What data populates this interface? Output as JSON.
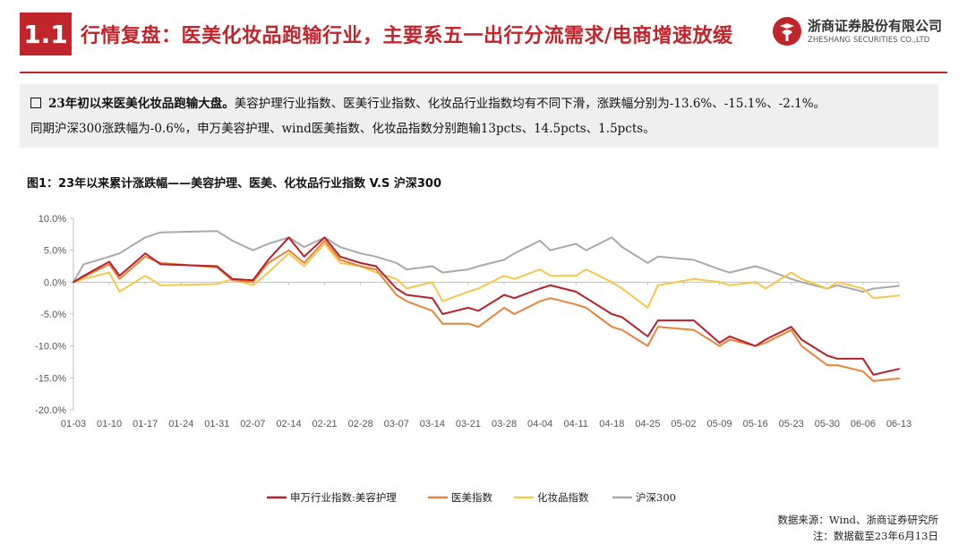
{
  "header": {
    "section_number": "1.1",
    "title": "行情复盘：医美化妆品跑输行业，主要系五一出行分流需求/电商增速放缓",
    "logo_cn": "浙商证券股份有限公司",
    "logo_en": "ZHESHANG SECURITIES CO.,LTD"
  },
  "summary": {
    "lead": "23年初以来医美化妆品跑输大盘。",
    "line1_rest": "美容护理行业指数、医美行业指数、化妆品行业指数均有不同下滑，涨跌幅分别为-13.6%、-15.1%、-2.1%。",
    "line2": "同期沪深300涨跌幅为-0.6%，申万美容护理、wind医美指数、化妆品指数分别跑输13pcts、14.5pcts、1.5pcts。"
  },
  "figure": {
    "title": "图1：23年以来累计涨跌幅——美容护理、医美、化妆品行业指数 V.S 沪深300"
  },
  "source": {
    "line1": "数据来源：Wind、浙商证券研究所",
    "line2": "注：数据截至23年6月13日"
  },
  "chart_data": {
    "type": "line",
    "title": "",
    "xlabel": "",
    "ylabel": "",
    "ylim": [
      -20,
      10
    ],
    "yticks": [
      10,
      5,
      0,
      -5,
      -10,
      -15,
      -20
    ],
    "ytick_labels": [
      "10.0%",
      "5.0%",
      "0.0%",
      "-5.0%",
      "-10.0%",
      "-15.0%",
      "-20.0%"
    ],
    "xtick_labels": [
      "01-03",
      "01-10",
      "01-17",
      "01-24",
      "01-31",
      "02-07",
      "02-14",
      "02-21",
      "02-28",
      "03-07",
      "03-14",
      "03-21",
      "03-28",
      "04-04",
      "04-11",
      "04-18",
      "04-25",
      "05-02",
      "05-09",
      "05-16",
      "05-23",
      "05-30",
      "06-06",
      "06-13"
    ],
    "x": [
      "01-03",
      "01-05",
      "01-10",
      "01-12",
      "01-17",
      "01-20",
      "01-31",
      "02-03",
      "02-07",
      "02-10",
      "02-14",
      "02-17",
      "02-21",
      "02-24",
      "02-28",
      "03-03",
      "03-07",
      "03-09",
      "03-14",
      "03-16",
      "03-21",
      "03-23",
      "03-28",
      "03-30",
      "04-04",
      "04-06",
      "04-11",
      "04-13",
      "04-18",
      "04-20",
      "04-25",
      "04-27",
      "05-04",
      "05-09",
      "05-11",
      "05-16",
      "05-18",
      "05-23",
      "05-25",
      "05-30",
      "06-01",
      "06-06",
      "06-08",
      "06-13"
    ],
    "grid": false,
    "legend_position": "bottom",
    "series": [
      {
        "name": "申万行业指数:美容护理",
        "color": "#b5202a",
        "values": [
          0,
          1.0,
          3.2,
          1.0,
          4.5,
          2.8,
          2.5,
          0.5,
          0.3,
          3.5,
          7.0,
          4.0,
          7.0,
          4.0,
          3.0,
          2.5,
          -1.0,
          -2.0,
          -2.5,
          -5.0,
          -4.0,
          -4.5,
          -2.0,
          -2.5,
          -1.0,
          -0.5,
          -1.5,
          -2.5,
          -5.0,
          -5.5,
          -8.5,
          -6.0,
          -6.0,
          -9.5,
          -8.5,
          -10.0,
          -9.0,
          -7.0,
          -9.0,
          -11.5,
          -12.0,
          -12.0,
          -14.5,
          -13.6
        ]
      },
      {
        "name": "医美指数",
        "color": "#e8843a",
        "values": [
          0,
          0.8,
          2.8,
          0.5,
          4.0,
          3.0,
          2.3,
          0.3,
          0.0,
          3.0,
          5.0,
          3.0,
          6.5,
          3.5,
          2.5,
          2.0,
          -2.0,
          -3.0,
          -4.5,
          -6.5,
          -6.5,
          -7.0,
          -4.0,
          -5.0,
          -3.0,
          -2.5,
          -3.5,
          -4.0,
          -7.0,
          -7.5,
          -10.0,
          -7.0,
          -7.5,
          -10.0,
          -9.0,
          -10.0,
          -9.5,
          -7.5,
          -10.0,
          -13.0,
          -13.0,
          -14.0,
          -15.5,
          -15.1
        ]
      },
      {
        "name": "化妆品指数",
        "color": "#f4c84c",
        "values": [
          0,
          0.5,
          1.5,
          -1.5,
          1.0,
          -0.5,
          -0.3,
          0.5,
          -0.5,
          1.5,
          4.5,
          2.5,
          6.0,
          3.0,
          2.5,
          1.5,
          0.5,
          -1.0,
          0.0,
          -3.0,
          -1.5,
          -1.0,
          1.0,
          0.5,
          2.0,
          1.0,
          1.0,
          2.0,
          0.0,
          -1.0,
          -4.0,
          -0.5,
          0.5,
          0.0,
          -0.5,
          0.0,
          -1.0,
          1.5,
          0.5,
          -1.0,
          0.0,
          -1.0,
          -2.5,
          -2.1
        ]
      },
      {
        "name": "沪深300",
        "color": "#a9a9a9",
        "values": [
          0,
          2.8,
          4.0,
          4.5,
          7.0,
          7.8,
          8.0,
          6.5,
          5.0,
          6.0,
          7.0,
          5.5,
          7.0,
          5.5,
          4.5,
          4.0,
          3.0,
          2.0,
          2.5,
          1.5,
          2.0,
          2.5,
          3.5,
          4.5,
          6.5,
          5.0,
          6.0,
          5.0,
          7.0,
          5.5,
          3.0,
          4.0,
          3.5,
          2.0,
          1.5,
          2.5,
          2.0,
          0.5,
          0.0,
          -1.0,
          -0.5,
          -1.5,
          -1.0,
          -0.6
        ]
      }
    ]
  }
}
